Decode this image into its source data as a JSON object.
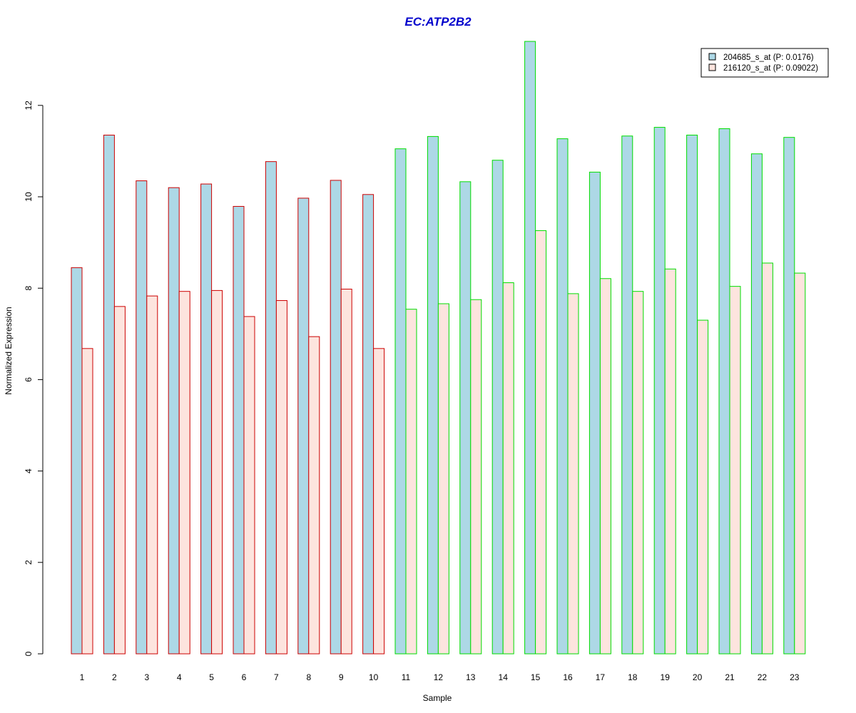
{
  "chart_data": {
    "type": "bar",
    "title": "EC:ATP2B2",
    "xlabel": "Sample",
    "ylabel": "Normalized Expression",
    "ylim": [
      0,
      13.5
    ],
    "yticks": [
      0,
      2,
      4,
      6,
      8,
      10,
      12
    ],
    "grid": false,
    "legend_position": "top-right",
    "categories": [
      "1",
      "2",
      "3",
      "4",
      "5",
      "6",
      "7",
      "8",
      "9",
      "10",
      "11",
      "12",
      "13",
      "14",
      "15",
      "16",
      "17",
      "18",
      "19",
      "20",
      "21",
      "22",
      "23"
    ],
    "group_border_colors": [
      "#cc0000",
      "#cc0000",
      "#cc0000",
      "#cc0000",
      "#cc0000",
      "#cc0000",
      "#cc0000",
      "#cc0000",
      "#cc0000",
      "#cc0000",
      "#00dd00",
      "#00dd00",
      "#00dd00",
      "#00dd00",
      "#00dd00",
      "#00dd00",
      "#00dd00",
      "#00dd00",
      "#00dd00",
      "#00dd00",
      "#00dd00",
      "#00dd00",
      "#00dd00"
    ],
    "series": [
      {
        "name": "204685_s_at (P: 0.0176)",
        "fill": "#add8e6",
        "values": [
          8.45,
          11.35,
          10.35,
          10.2,
          10.28,
          9.79,
          10.77,
          9.97,
          10.36,
          10.05,
          11.05,
          11.32,
          10.33,
          10.8,
          13.4,
          11.27,
          10.54,
          11.33,
          11.52,
          11.35,
          11.49,
          10.94,
          11.3
        ]
      },
      {
        "name": "216120_s_at (P: 0.09022)",
        "fill": "#fde4de",
        "values": [
          6.68,
          7.6,
          7.83,
          7.93,
          7.95,
          7.38,
          7.73,
          6.94,
          7.98,
          6.68,
          7.54,
          7.66,
          7.75,
          8.12,
          9.26,
          7.88,
          8.21,
          7.93,
          8.42,
          7.3,
          8.04,
          8.55,
          8.33
        ]
      }
    ]
  },
  "colors": {
    "title": "#0000cc",
    "axis": "#000000",
    "legend_border": "#000000"
  }
}
